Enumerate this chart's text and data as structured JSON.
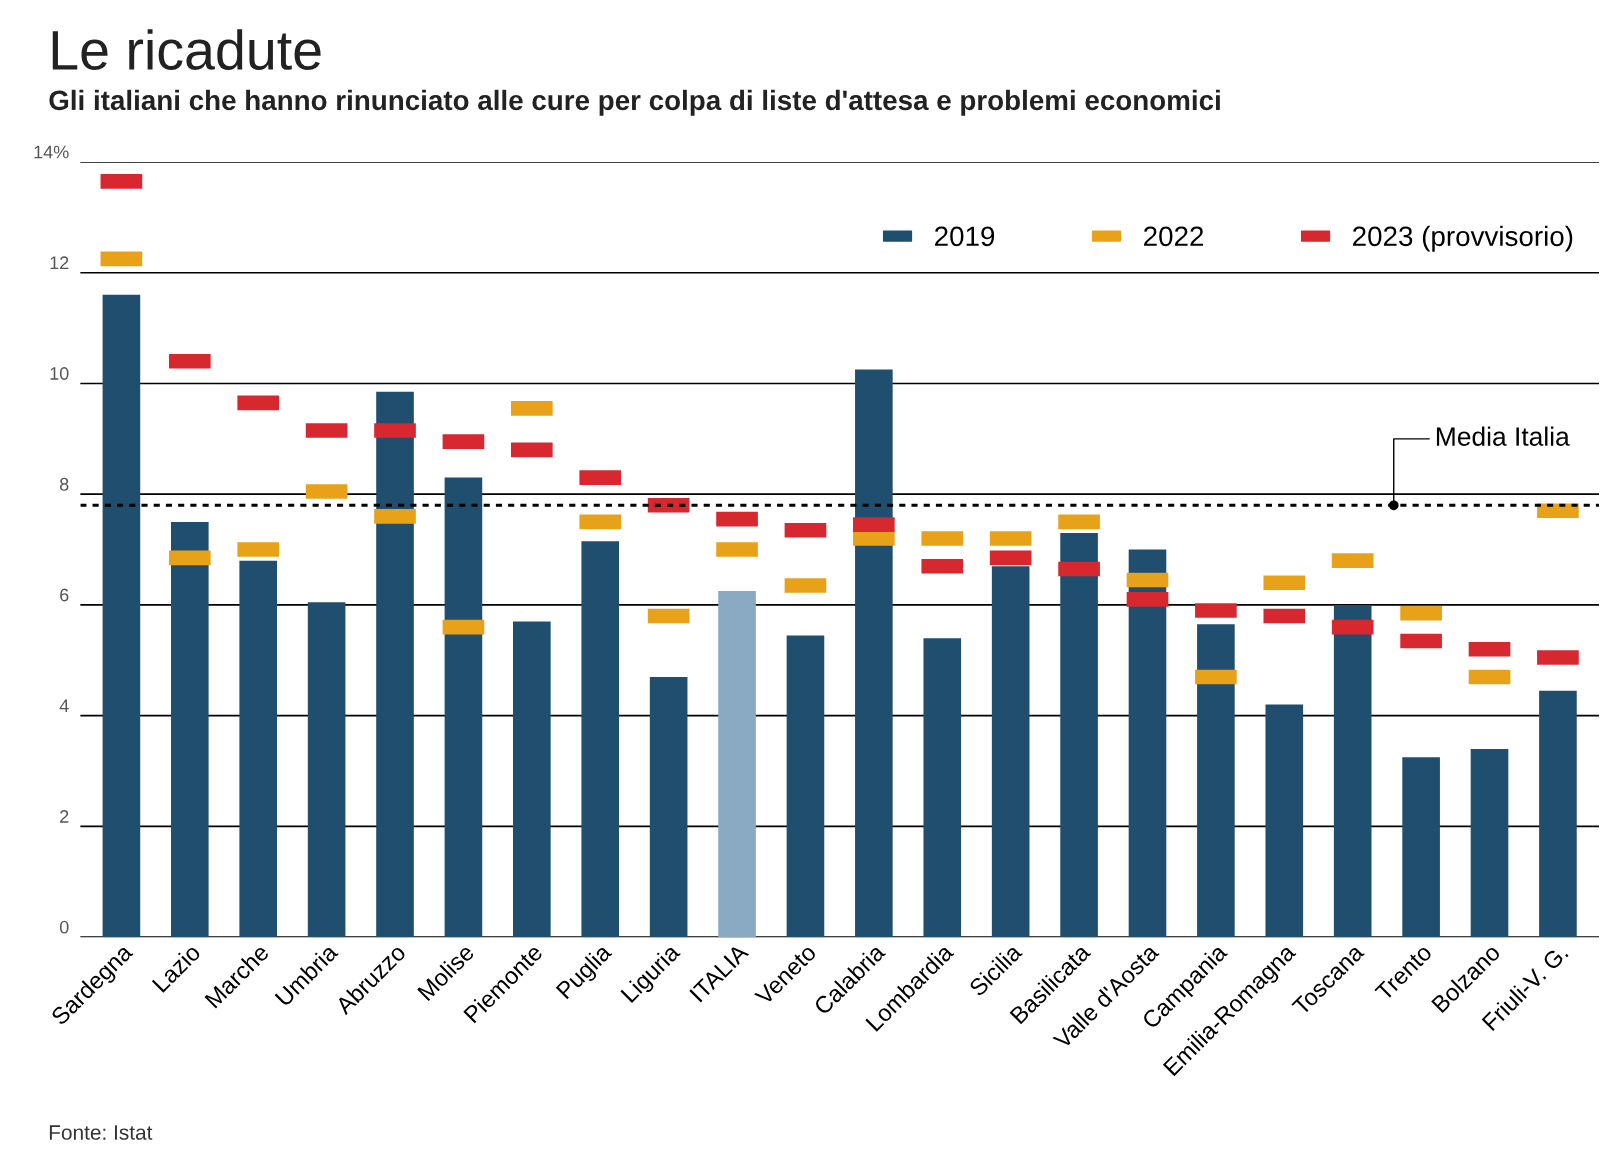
{
  "chart_data": {
    "type": "bar",
    "title": "Le ricadute",
    "subtitle": "Gli italiani che hanno rinunciato alle cure per colpa di liste d'attesa e problemi economici",
    "categories": [
      "Sardegna",
      "Lazio",
      "Marche",
      "Umbria",
      "Abruzzo",
      "Molise",
      "Piemonte",
      "Puglia",
      "Liguria",
      "ITALIA",
      "Veneto",
      "Calabria",
      "Lombardia",
      "Sicilia",
      "Basilicata",
      "Valle d'Aosta",
      "Campania",
      "Emilia-Romagna",
      "Toscana",
      "Trento",
      "Bolzano",
      "Friuli-V. G."
    ],
    "series": [
      {
        "name": "2019",
        "color": "#1f4e6e",
        "colors": [
          "#1f4e6e",
          "#1f4e6e",
          "#1f4e6e",
          "#1f4e6e",
          "#1f4e6e",
          "#1f4e6e",
          "#1f4e6e",
          "#1f4e6e",
          "#1f4e6e",
          "#8aaac4",
          "#1f4e6e",
          "#1f4e6e",
          "#1f4e6e",
          "#1f4e6e",
          "#1f4e6e",
          "#1f4e6e",
          "#1f4e6e",
          "#1f4e6e",
          "#1f4e6e",
          "#1f4e6e",
          "#1f4e6e",
          "#1f4e6e"
        ],
        "values": [
          11.6,
          7.5,
          6.8,
          6.05,
          9.85,
          8.3,
          5.7,
          7.15,
          4.7,
          6.25,
          5.45,
          10.25,
          5.4,
          6.7,
          7.3,
          7.0,
          5.65,
          4.2,
          6.0,
          3.25,
          3.4,
          4.45
        ]
      },
      {
        "name": "2022",
        "type": "scatter",
        "marker": "square",
        "color": "#e8a21a",
        "values": [
          12.25,
          6.85,
          7.0,
          8.05,
          7.6,
          5.6,
          9.55,
          7.5,
          5.8,
          7.0,
          6.35,
          7.2,
          7.2,
          7.2,
          7.5,
          6.45,
          4.7,
          6.4,
          6.8,
          5.85,
          4.7,
          7.7
        ]
      },
      {
        "name": "2023 (provvisorio)",
        "type": "scatter",
        "marker": "square",
        "color": "#d7282f",
        "values": [
          13.65,
          10.4,
          9.65,
          9.15,
          9.15,
          8.95,
          8.8,
          8.3,
          7.8,
          7.55,
          7.35,
          7.45,
          6.7,
          6.85,
          6.65,
          6.1,
          5.9,
          5.8,
          5.6,
          5.35,
          5.2,
          5.05
        ]
      }
    ],
    "ylim": [
      0,
      14
    ],
    "yticks": [
      0,
      2,
      4,
      6,
      8,
      10,
      12,
      {
        "value": 14,
        "label": "14%"
      }
    ],
    "grid": "y",
    "legend": "top right",
    "ref_lines": [
      {
        "axis": "y",
        "value": 7.8,
        "label": "Media Italia",
        "line_style": "dotted",
        "color": "#000000"
      }
    ],
    "annotations": [
      "Fonte: Istat"
    ]
  }
}
